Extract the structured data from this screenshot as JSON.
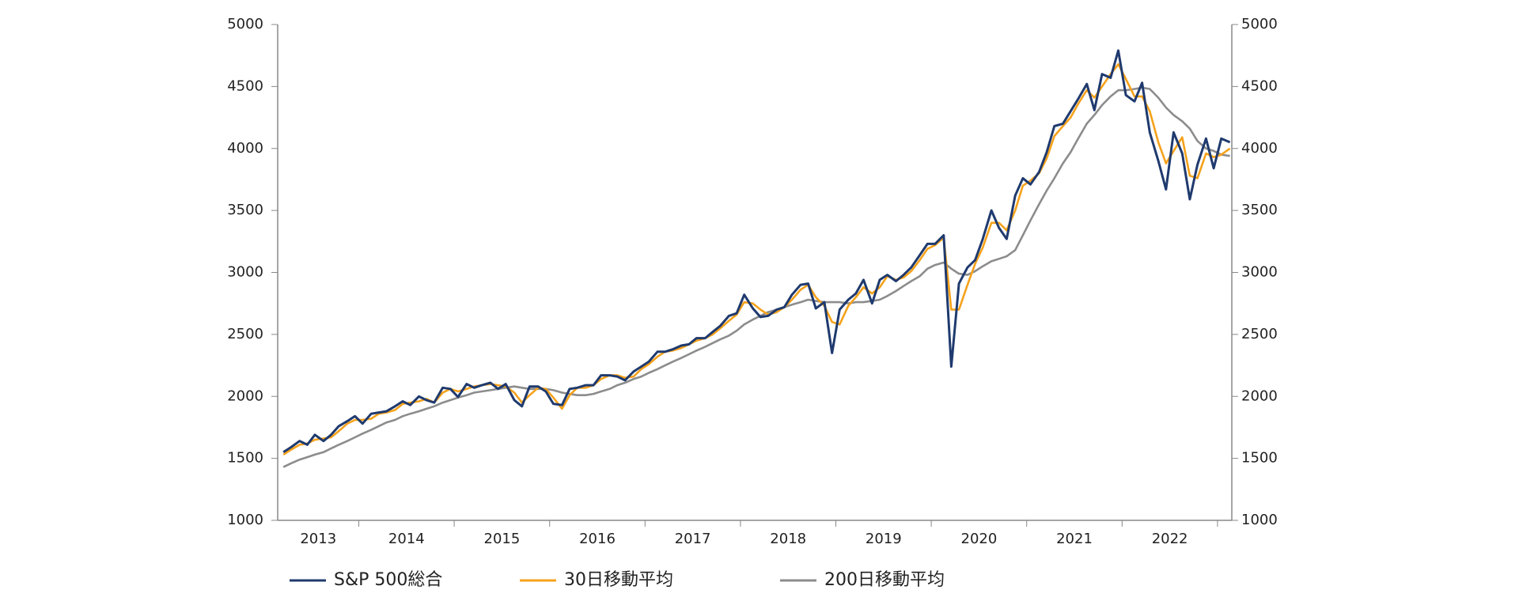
{
  "chart_data": {
    "type": "line",
    "x": [
      2013.21,
      2013.29,
      2013.38,
      2013.46,
      2013.54,
      2013.63,
      2013.71,
      2013.79,
      2013.88,
      2013.96,
      2014.04,
      2014.13,
      2014.21,
      2014.29,
      2014.38,
      2014.46,
      2014.54,
      2014.63,
      2014.71,
      2014.79,
      2014.88,
      2014.96,
      2015.04,
      2015.13,
      2015.21,
      2015.29,
      2015.38,
      2015.46,
      2015.54,
      2015.63,
      2015.71,
      2015.79,
      2015.88,
      2015.96,
      2016.04,
      2016.13,
      2016.21,
      2016.29,
      2016.38,
      2016.46,
      2016.54,
      2016.63,
      2016.71,
      2016.79,
      2016.88,
      2016.96,
      2017.04,
      2017.13,
      2017.21,
      2017.29,
      2017.38,
      2017.46,
      2017.54,
      2017.63,
      2017.71,
      2017.79,
      2017.88,
      2017.96,
      2018.04,
      2018.13,
      2018.21,
      2018.29,
      2018.38,
      2018.46,
      2018.54,
      2018.63,
      2018.71,
      2018.79,
      2018.88,
      2018.96,
      2019.04,
      2019.13,
      2019.21,
      2019.29,
      2019.38,
      2019.46,
      2019.54,
      2019.63,
      2019.71,
      2019.79,
      2019.88,
      2019.96,
      2020.04,
      2020.13,
      2020.21,
      2020.29,
      2020.38,
      2020.46,
      2020.54,
      2020.63,
      2020.71,
      2020.79,
      2020.88,
      2020.96,
      2021.04,
      2021.13,
      2021.21,
      2021.29,
      2021.38,
      2021.46,
      2021.54,
      2021.63,
      2021.71,
      2021.79,
      2021.88,
      2021.96,
      2022.04,
      2022.13,
      2022.21,
      2022.29,
      2022.38,
      2022.46,
      2022.54,
      2022.63,
      2022.71,
      2022.79,
      2022.88,
      2022.96,
      2023.04,
      2023.13
    ],
    "series": [
      {
        "name": "S&P 500総合",
        "color": "#1f3a6e",
        "values": [
          1550,
          1590,
          1640,
          1610,
          1690,
          1640,
          1690,
          1760,
          1800,
          1840,
          1780,
          1860,
          1870,
          1880,
          1920,
          1960,
          1930,
          2000,
          1970,
          1950,
          2070,
          2060,
          1995,
          2100,
          2070,
          2090,
          2110,
          2060,
          2100,
          1970,
          1920,
          2080,
          2080,
          2040,
          1940,
          1930,
          2060,
          2070,
          2090,
          2090,
          2170,
          2170,
          2160,
          2130,
          2200,
          2240,
          2280,
          2360,
          2360,
          2380,
          2410,
          2420,
          2470,
          2470,
          2520,
          2570,
          2650,
          2670,
          2820,
          2710,
          2640,
          2650,
          2700,
          2720,
          2820,
          2900,
          2910,
          2710,
          2760,
          2350,
          2700,
          2780,
          2830,
          2940,
          2750,
          2940,
          2980,
          2930,
          2980,
          3040,
          3140,
          3230,
          3230,
          3300,
          2240,
          2910,
          3040,
          3100,
          3270,
          3500,
          3360,
          3270,
          3620,
          3760,
          3710,
          3810,
          3970,
          4180,
          4200,
          4300,
          4400,
          4520,
          4310,
          4600,
          4570,
          4790,
          4430,
          4380,
          4530,
          4130,
          3900,
          3670,
          4130,
          3960,
          3590,
          3870,
          4080,
          3840,
          4080,
          4050
        ]
      },
      {
        "name": "30日移動平均",
        "color": "#f5a21b",
        "values": [
          1530,
          1570,
          1610,
          1620,
          1650,
          1660,
          1670,
          1720,
          1780,
          1810,
          1810,
          1820,
          1860,
          1870,
          1890,
          1940,
          1950,
          1960,
          1980,
          1950,
          2030,
          2060,
          2040,
          2060,
          2080,
          2090,
          2100,
          2090,
          2080,
          2030,
          1950,
          2010,
          2070,
          2060,
          1990,
          1900,
          2010,
          2070,
          2070,
          2090,
          2140,
          2170,
          2170,
          2150,
          2160,
          2220,
          2260,
          2320,
          2360,
          2370,
          2390,
          2420,
          2450,
          2470,
          2500,
          2550,
          2610,
          2660,
          2760,
          2750,
          2700,
          2660,
          2680,
          2720,
          2780,
          2860,
          2900,
          2800,
          2730,
          2600,
          2580,
          2730,
          2800,
          2880,
          2830,
          2880,
          2970,
          2940,
          2960,
          3010,
          3100,
          3190,
          3220,
          3280,
          2700,
          2700,
          2900,
          3070,
          3200,
          3400,
          3400,
          3340,
          3500,
          3700,
          3740,
          3800,
          3920,
          4100,
          4180,
          4250,
          4360,
          4470,
          4410,
          4500,
          4600,
          4680,
          4560,
          4420,
          4420,
          4300,
          4050,
          3880,
          3980,
          4090,
          3780,
          3760,
          3960,
          3930,
          3950,
          4000
        ]
      },
      {
        "name": "200日移動平均",
        "color": "#8c8c8c",
        "values": [
          1430,
          1460,
          1490,
          1510,
          1530,
          1550,
          1580,
          1610,
          1640,
          1670,
          1700,
          1730,
          1760,
          1790,
          1810,
          1840,
          1860,
          1880,
          1900,
          1920,
          1950,
          1970,
          1990,
          2010,
          2030,
          2040,
          2050,
          2060,
          2070,
          2080,
          2070,
          2060,
          2060,
          2060,
          2050,
          2030,
          2020,
          2010,
          2010,
          2020,
          2040,
          2060,
          2090,
          2110,
          2140,
          2160,
          2190,
          2220,
          2250,
          2280,
          2310,
          2340,
          2370,
          2400,
          2430,
          2460,
          2490,
          2530,
          2580,
          2620,
          2650,
          2680,
          2700,
          2720,
          2740,
          2760,
          2780,
          2770,
          2760,
          2760,
          2760,
          2750,
          2760,
          2760,
          2770,
          2780,
          2810,
          2850,
          2890,
          2930,
          2970,
          3030,
          3060,
          3080,
          3030,
          2990,
          2980,
          3010,
          3050,
          3090,
          3110,
          3130,
          3180,
          3300,
          3420,
          3550,
          3660,
          3760,
          3880,
          3970,
          4080,
          4200,
          4270,
          4350,
          4420,
          4470,
          4470,
          4480,
          4490,
          4480,
          4410,
          4330,
          4270,
          4220,
          4160,
          4060,
          4000,
          3980,
          3950,
          3940
        ]
      }
    ],
    "xlim": [
      2013.15,
      2023.15
    ],
    "xticks": [
      2014,
      2015,
      2016,
      2017,
      2018,
      2019,
      2020,
      2021,
      2022,
      2023
    ],
    "year_labels": [
      "2013",
      "2014",
      "2015",
      "2016",
      "2017",
      "2018",
      "2019",
      "2020",
      "2021",
      "2022"
    ],
    "ylim": [
      1000,
      5000
    ],
    "yticks": [
      1000,
      1500,
      2000,
      2500,
      3000,
      3500,
      4000,
      4500,
      5000
    ],
    "y2lim": [
      1000,
      5000
    ],
    "y2ticks": [
      1000,
      1500,
      2000,
      2500,
      3000,
      3500,
      4000,
      4500,
      5000
    ]
  }
}
